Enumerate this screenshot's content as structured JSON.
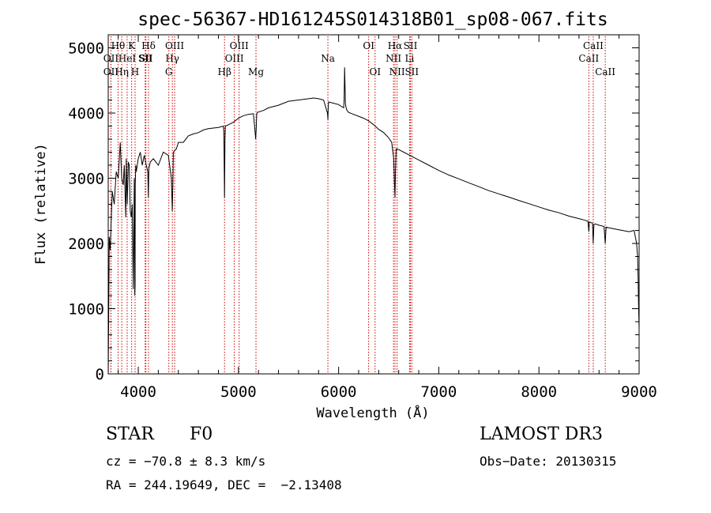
{
  "chart_data": {
    "type": "line",
    "title": "spec-56367-HD161245S014318B01_sp08-067.fits",
    "xlabel": "Wavelength (Å)",
    "ylabel": "Flux (relative)",
    "xlim": [
      3700,
      9000
    ],
    "ylim": [
      0,
      5200
    ],
    "x_ticks": [
      4000,
      5000,
      6000,
      7000,
      8000,
      9000
    ],
    "y_ticks": [
      0,
      1000,
      2000,
      3000,
      4000,
      5000
    ],
    "x_tick_labels": [
      "4000",
      "5000",
      "6000",
      "7000",
      "8000",
      "9000"
    ],
    "y_tick_labels": [
      "0",
      "1000",
      "2000",
      "3000",
      "4000",
      "5000"
    ],
    "series": [
      {
        "name": "flux",
        "x": [
          3700,
          3705,
          3710,
          3720,
          3740,
          3760,
          3780,
          3800,
          3820,
          3835,
          3850,
          3860,
          3875,
          3880,
          3890,
          3900,
          3910,
          3920,
          3930,
          3940,
          3950,
          3960,
          3965,
          3968,
          3970,
          3975,
          3980,
          4000,
          4020,
          4040,
          4060,
          4080,
          4095,
          4101,
          4105,
          4120,
          4150,
          4200,
          4250,
          4300,
          4330,
          4340,
          4345,
          4350,
          4380,
          4400,
          4450,
          4500,
          4550,
          4600,
          4650,
          4700,
          4750,
          4800,
          4850,
          4855,
          4861,
          4866,
          4870,
          4900,
          4950,
          5000,
          5050,
          5100,
          5150,
          5167,
          5172,
          5177,
          5183,
          5190,
          5250,
          5300,
          5400,
          5500,
          5600,
          5700,
          5750,
          5800,
          5850,
          5889,
          5893,
          5896,
          5900,
          5950,
          6000,
          6050,
          6055,
          6060,
          6063,
          6066,
          6068,
          6072,
          6080,
          6100,
          6150,
          6200,
          6250,
          6300,
          6350,
          6400,
          6450,
          6500,
          6530,
          6550,
          6558,
          6563,
          6568,
          6575,
          6600,
          6650,
          6700,
          6800,
          6900,
          7000,
          7100,
          7200,
          7300,
          7400,
          7500,
          7600,
          7700,
          7800,
          7900,
          8000,
          8100,
          8200,
          8300,
          8400,
          8450,
          8490,
          8498,
          8503,
          8520,
          8535,
          8542,
          8549,
          8560,
          8600,
          8650,
          8662,
          8670,
          8700,
          8800,
          8900,
          8950,
          8975,
          8985,
          8990,
          8995,
          9000
        ],
        "y": [
          0,
          900,
          2100,
          1900,
          2800,
          2600,
          3100,
          3000,
          3550,
          3000,
          2900,
          3200,
          2400,
          3300,
          2600,
          3250,
          3200,
          2500,
          2400,
          2600,
          1300,
          3000,
          1200,
          1350,
          2900,
          3200,
          3100,
          3300,
          3400,
          3200,
          3350,
          3200,
          3100,
          2700,
          3150,
          3250,
          3300,
          3200,
          3400,
          3350,
          3000,
          2500,
          2900,
          3400,
          3450,
          3550,
          3550,
          3650,
          3680,
          3700,
          3740,
          3760,
          3770,
          3780,
          3800,
          3700,
          2700,
          3600,
          3800,
          3820,
          3860,
          3920,
          3960,
          3980,
          3990,
          3700,
          3600,
          3750,
          3990,
          4010,
          4040,
          4080,
          4120,
          4180,
          4200,
          4220,
          4230,
          4220,
          4200,
          4000,
          3900,
          4050,
          4170,
          4150,
          4130,
          4080,
          4200,
          4700,
          4500,
          4300,
          4150,
          4100,
          4050,
          4010,
          3980,
          3950,
          3920,
          3880,
          3820,
          3750,
          3700,
          3620,
          3550,
          3300,
          2900,
          2700,
          3100,
          3450,
          3440,
          3400,
          3360,
          3280,
          3200,
          3120,
          3050,
          2990,
          2930,
          2870,
          2810,
          2760,
          2710,
          2660,
          2610,
          2560,
          2510,
          2470,
          2420,
          2380,
          2360,
          2340,
          2180,
          2330,
          2320,
          2310,
          2000,
          2290,
          2300,
          2280,
          2260,
          2000,
          2250,
          2240,
          2210,
          2180,
          2200,
          2000,
          1800,
          1500,
          1000,
          700
        ]
      }
    ],
    "spectral_lines": [
      {
        "label": "Hθ",
        "wavelength": 3798,
        "row": 1
      },
      {
        "label": "OII",
        "wavelength": 3727,
        "row": 2
      },
      {
        "label": "OII",
        "wavelength": 3727,
        "row": 3
      },
      {
        "label": "HeI",
        "wavelength": 3889,
        "row": 2
      },
      {
        "label": "Hη",
        "wavelength": 3835,
        "row": 3
      },
      {
        "label": "K",
        "wavelength": 3934,
        "row": 1
      },
      {
        "label": "SII",
        "wavelength": 4069,
        "row": 2
      },
      {
        "label": "H",
        "wavelength": 3968,
        "row": 3
      },
      {
        "label": "Hδ",
        "wavelength": 4102,
        "row": 1
      },
      {
        "label": "SII",
        "wavelength": 4076,
        "row": 2
      },
      {
        "label": "OIII",
        "wavelength": 4363,
        "row": 1
      },
      {
        "label": "Hγ",
        "wavelength": 4340,
        "row": 2
      },
      {
        "label": "G",
        "wavelength": 4305,
        "row": 3
      },
      {
        "label": "Hβ",
        "wavelength": 4861,
        "row": 3
      },
      {
        "label": "OIII",
        "wavelength": 5007,
        "row": 1
      },
      {
        "label": "OIII",
        "wavelength": 4959,
        "row": 2
      },
      {
        "label": "Mg",
        "wavelength": 5175,
        "row": 3
      },
      {
        "label": "Na",
        "wavelength": 5893,
        "row": 2
      },
      {
        "label": "OI",
        "wavelength": 6300,
        "row": 1
      },
      {
        "label": "OI",
        "wavelength": 6364,
        "row": 3
      },
      {
        "label": "Hα",
        "wavelength": 6563,
        "row": 1
      },
      {
        "label": "SII",
        "wavelength": 6717,
        "row": 1
      },
      {
        "label": "NII",
        "wavelength": 6548,
        "row": 2
      },
      {
        "label": "Li",
        "wavelength": 6708,
        "row": 2
      },
      {
        "label": "NII",
        "wavelength": 6584,
        "row": 3
      },
      {
        "label": "SII",
        "wavelength": 6731,
        "row": 3
      },
      {
        "label": "CaII",
        "wavelength": 8542,
        "row": 1
      },
      {
        "label": "CaII",
        "wavelength": 8498,
        "row": 2
      },
      {
        "label": "CaII",
        "wavelength": 8662,
        "row": 3
      }
    ],
    "line_color": "#cc0000",
    "spectrum_color": "#000000"
  },
  "info": {
    "class": "STAR",
    "subclass": "F0",
    "survey": "LAMOST DR3",
    "cz": "cz = −70.8 ± 8.3 km/s",
    "obs_date": "Obs−Date: 20130315",
    "coords": "RA = 244.19649, DEC =  −2.13408"
  }
}
